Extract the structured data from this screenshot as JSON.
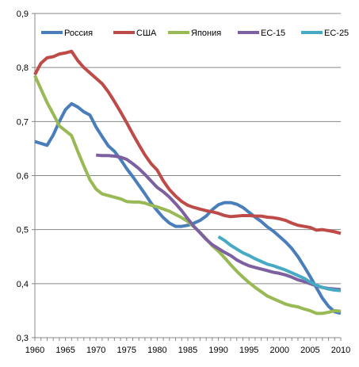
{
  "chart_data": {
    "type": "line",
    "title": "",
    "xlabel": "",
    "ylabel": "",
    "xlim": [
      1960,
      2010
    ],
    "ylim": [
      0.3,
      0.9
    ],
    "x_ticks": [
      "1960",
      "1965",
      "1970",
      "1975",
      "1980",
      "1985",
      "1990",
      "1995",
      "2000",
      "2005",
      "2010"
    ],
    "y_ticks": [
      "0,3",
      "0,4",
      "0,5",
      "0,6",
      "0,7",
      "0,8",
      "0,9"
    ],
    "grid": true,
    "legend_position": "top",
    "series": [
      {
        "name": "Россия",
        "color": "#4a7ebb",
        "points": [
          [
            1960,
            0.663
          ],
          [
            1962,
            0.656
          ],
          [
            1963,
            0.675
          ],
          [
            1964,
            0.7
          ],
          [
            1965,
            0.722
          ],
          [
            1966,
            0.733
          ],
          [
            1967,
            0.727
          ],
          [
            1968,
            0.718
          ],
          [
            1969,
            0.712
          ],
          [
            1970,
            0.69
          ],
          [
            1971,
            0.672
          ],
          [
            1972,
            0.655
          ],
          [
            1973,
            0.645
          ],
          [
            1974,
            0.63
          ],
          [
            1975,
            0.613
          ],
          [
            1976,
            0.598
          ],
          [
            1977,
            0.582
          ],
          [
            1978,
            0.566
          ],
          [
            1979,
            0.549
          ],
          [
            1980,
            0.535
          ],
          [
            1981,
            0.522
          ],
          [
            1982,
            0.512
          ],
          [
            1983,
            0.506
          ],
          [
            1984,
            0.506
          ],
          [
            1985,
            0.508
          ],
          [
            1986,
            0.512
          ],
          [
            1987,
            0.517
          ],
          [
            1988,
            0.525
          ],
          [
            1989,
            0.537
          ],
          [
            1990,
            0.546
          ],
          [
            1991,
            0.55
          ],
          [
            1992,
            0.55
          ],
          [
            1993,
            0.547
          ],
          [
            1994,
            0.541
          ],
          [
            1995,
            0.532
          ],
          [
            1996,
            0.523
          ],
          [
            1997,
            0.515
          ],
          [
            1998,
            0.505
          ],
          [
            1999,
            0.497
          ],
          [
            2000,
            0.487
          ],
          [
            2001,
            0.477
          ],
          [
            2002,
            0.465
          ],
          [
            2003,
            0.45
          ],
          [
            2004,
            0.432
          ],
          [
            2005,
            0.413
          ],
          [
            2006,
            0.393
          ],
          [
            2007,
            0.373
          ],
          [
            2008,
            0.358
          ],
          [
            2009,
            0.348
          ],
          [
            2010,
            0.345
          ]
        ]
      },
      {
        "name": "США",
        "color": "#be4b48",
        "points": [
          [
            1960,
            0.787
          ],
          [
            1961,
            0.808
          ],
          [
            1962,
            0.818
          ],
          [
            1963,
            0.82
          ],
          [
            1964,
            0.825
          ],
          [
            1965,
            0.827
          ],
          [
            1966,
            0.83
          ],
          [
            1967,
            0.813
          ],
          [
            1968,
            0.8
          ],
          [
            1969,
            0.79
          ],
          [
            1970,
            0.78
          ],
          [
            1971,
            0.77
          ],
          [
            1972,
            0.755
          ],
          [
            1973,
            0.737
          ],
          [
            1974,
            0.718
          ],
          [
            1975,
            0.698
          ],
          [
            1976,
            0.677
          ],
          [
            1977,
            0.657
          ],
          [
            1978,
            0.638
          ],
          [
            1979,
            0.622
          ],
          [
            1980,
            0.61
          ],
          [
            1981,
            0.59
          ],
          [
            1982,
            0.574
          ],
          [
            1983,
            0.562
          ],
          [
            1984,
            0.552
          ],
          [
            1985,
            0.545
          ],
          [
            1986,
            0.541
          ],
          [
            1987,
            0.538
          ],
          [
            1988,
            0.535
          ],
          [
            1989,
            0.533
          ],
          [
            1990,
            0.53
          ],
          [
            1991,
            0.526
          ],
          [
            1992,
            0.524
          ],
          [
            1993,
            0.525
          ],
          [
            1994,
            0.526
          ],
          [
            1995,
            0.526
          ],
          [
            1996,
            0.525
          ],
          [
            1997,
            0.525
          ],
          [
            1998,
            0.523
          ],
          [
            1999,
            0.522
          ],
          [
            2000,
            0.52
          ],
          [
            2001,
            0.517
          ],
          [
            2002,
            0.512
          ],
          [
            2003,
            0.508
          ],
          [
            2004,
            0.506
          ],
          [
            2005,
            0.504
          ],
          [
            2006,
            0.499
          ],
          [
            2007,
            0.5
          ],
          [
            2008,
            0.498
          ],
          [
            2009,
            0.496
          ],
          [
            2010,
            0.493
          ]
        ]
      },
      {
        "name": "Япония",
        "color": "#98b954",
        "points": [
          [
            1960,
            0.785
          ],
          [
            1961,
            0.76
          ],
          [
            1962,
            0.735
          ],
          [
            1963,
            0.714
          ],
          [
            1964,
            0.692
          ],
          [
            1965,
            0.683
          ],
          [
            1966,
            0.674
          ],
          [
            1967,
            0.645
          ],
          [
            1968,
            0.618
          ],
          [
            1969,
            0.592
          ],
          [
            1970,
            0.575
          ],
          [
            1971,
            0.566
          ],
          [
            1972,
            0.563
          ],
          [
            1973,
            0.56
          ],
          [
            1974,
            0.557
          ],
          [
            1975,
            0.552
          ],
          [
            1976,
            0.551
          ],
          [
            1977,
            0.551
          ],
          [
            1978,
            0.549
          ],
          [
            1979,
            0.545
          ],
          [
            1980,
            0.542
          ],
          [
            1981,
            0.538
          ],
          [
            1982,
            0.534
          ],
          [
            1983,
            0.528
          ],
          [
            1984,
            0.522
          ],
          [
            1985,
            0.515
          ],
          [
            1986,
            0.505
          ],
          [
            1987,
            0.495
          ],
          [
            1988,
            0.483
          ],
          [
            1989,
            0.47
          ],
          [
            1990,
            0.46
          ],
          [
            1991,
            0.448
          ],
          [
            1992,
            0.435
          ],
          [
            1993,
            0.423
          ],
          [
            1994,
            0.412
          ],
          [
            1995,
            0.402
          ],
          [
            1996,
            0.393
          ],
          [
            1997,
            0.385
          ],
          [
            1998,
            0.377
          ],
          [
            1999,
            0.372
          ],
          [
            2000,
            0.367
          ],
          [
            2001,
            0.362
          ],
          [
            2002,
            0.359
          ],
          [
            2003,
            0.357
          ],
          [
            2004,
            0.353
          ],
          [
            2005,
            0.35
          ],
          [
            2006,
            0.345
          ],
          [
            2007,
            0.345
          ],
          [
            2008,
            0.347
          ],
          [
            2009,
            0.35
          ],
          [
            2010,
            0.349
          ]
        ]
      },
      {
        "name": "ЕС-15",
        "color": "#7d60a0",
        "points": [
          [
            1970,
            0.638
          ],
          [
            1971,
            0.637
          ],
          [
            1972,
            0.637
          ],
          [
            1973,
            0.636
          ],
          [
            1974,
            0.634
          ],
          [
            1975,
            0.63
          ],
          [
            1976,
            0.622
          ],
          [
            1977,
            0.613
          ],
          [
            1978,
            0.602
          ],
          [
            1979,
            0.59
          ],
          [
            1980,
            0.578
          ],
          [
            1981,
            0.57
          ],
          [
            1982,
            0.56
          ],
          [
            1983,
            0.548
          ],
          [
            1984,
            0.535
          ],
          [
            1985,
            0.52
          ],
          [
            1986,
            0.506
          ],
          [
            1987,
            0.494
          ],
          [
            1988,
            0.482
          ],
          [
            1989,
            0.472
          ],
          [
            1990,
            0.465
          ],
          [
            1991,
            0.458
          ],
          [
            1992,
            0.452
          ],
          [
            1993,
            0.444
          ],
          [
            1994,
            0.438
          ],
          [
            1995,
            0.433
          ],
          [
            1996,
            0.43
          ],
          [
            1997,
            0.427
          ],
          [
            1998,
            0.424
          ],
          [
            1999,
            0.421
          ],
          [
            2000,
            0.419
          ],
          [
            2001,
            0.416
          ],
          [
            2002,
            0.412
          ],
          [
            2003,
            0.407
          ],
          [
            2004,
            0.404
          ],
          [
            2005,
            0.4
          ],
          [
            2006,
            0.396
          ],
          [
            2007,
            0.393
          ],
          [
            2008,
            0.391
          ],
          [
            2009,
            0.39
          ],
          [
            2010,
            0.389
          ]
        ]
      },
      {
        "name": "ЕС-25",
        "color": "#46aac5",
        "points": [
          [
            1990,
            0.487
          ],
          [
            1991,
            0.48
          ],
          [
            1992,
            0.471
          ],
          [
            1993,
            0.464
          ],
          [
            1994,
            0.457
          ],
          [
            1995,
            0.452
          ],
          [
            1996,
            0.446
          ],
          [
            1997,
            0.441
          ],
          [
            1998,
            0.436
          ],
          [
            1999,
            0.433
          ],
          [
            2000,
            0.429
          ],
          [
            2001,
            0.425
          ],
          [
            2002,
            0.42
          ],
          [
            2003,
            0.415
          ],
          [
            2004,
            0.41
          ],
          [
            2005,
            0.403
          ],
          [
            2006,
            0.397
          ],
          [
            2007,
            0.393
          ],
          [
            2008,
            0.39
          ],
          [
            2009,
            0.388
          ],
          [
            2010,
            0.387
          ]
        ]
      }
    ]
  }
}
